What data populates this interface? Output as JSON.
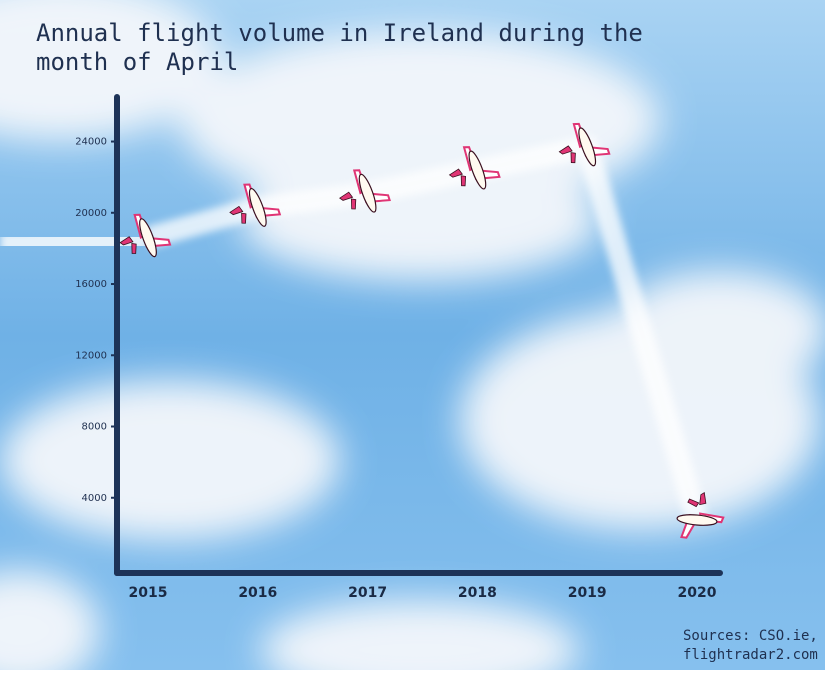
{
  "chart_data": {
    "type": "line",
    "title": [
      "Annual flight volume in Ireland during the",
      "month of April"
    ],
    "categories": [
      "2015",
      "2016",
      "2017",
      "2018",
      "2019",
      "2020"
    ],
    "values": [
      18600,
      20300,
      21100,
      22400,
      23700,
      2750
    ],
    "ylim": [
      0,
      26500
    ],
    "yticks": [
      4000,
      8000,
      12000,
      16000,
      20000,
      24000
    ],
    "axis_color": "#1d3358",
    "plane_color": "#e03575",
    "sources": [
      "Sources: CSO.ie,",
      "flightradar2.com"
    ]
  }
}
